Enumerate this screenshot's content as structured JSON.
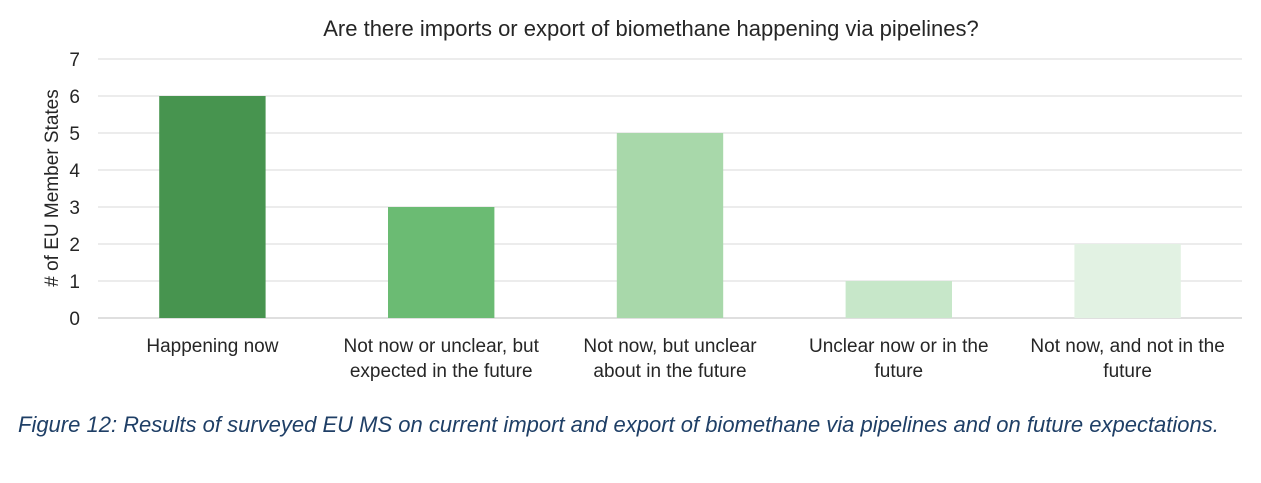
{
  "chart_data": {
    "type": "bar",
    "title": "Are there imports or export of biomethane happening via pipelines?",
    "xlabel": "",
    "ylabel": "# of EU Member States",
    "ylim": [
      0,
      7
    ],
    "yticks": [
      0,
      1,
      2,
      3,
      4,
      5,
      6,
      7
    ],
    "grid": true,
    "categories": [
      [
        "Happening now"
      ],
      [
        "Not now or unclear, but",
        "expected in the future"
      ],
      [
        "Not now, but unclear",
        "about in the future"
      ],
      [
        "Unclear now or in the",
        "future"
      ],
      [
        "Not now, and not in the",
        "future"
      ]
    ],
    "values": [
      6,
      3,
      5,
      1,
      2
    ],
    "colors": [
      "#47944f",
      "#6bbb73",
      "#a8d8aa",
      "#c7e7c9",
      "#e2f2e3"
    ],
    "grid_color": "#d9d9d9",
    "axis_color": "#bfbfbf"
  },
  "caption": "Figure 12: Results of surveyed EU MS on current import and export of biomethane via pipelines and on future expectations."
}
